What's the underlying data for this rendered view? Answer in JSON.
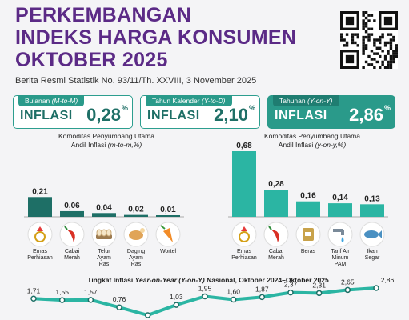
{
  "header": {
    "title_line1": "PERKEMBANGAN",
    "title_line2": "INDEKS HARGA KONSUMEN",
    "title_line3": "OKTOBER 2025",
    "subtitle": "Berita Resmi Statistik No. 93/11/Th. XXVIII, 3 November 2025"
  },
  "cards": [
    {
      "head": "Bulanan",
      "head_em": "(M-to-M)",
      "label": "INFLASI",
      "value": "0,28",
      "unit": "%"
    },
    {
      "head": "Tahun Kalender",
      "head_em": "(Y-to-D)",
      "label": "INFLASI",
      "value": "2,10",
      "unit": "%"
    },
    {
      "head": "Tahunan",
      "head_em": "(Y-on-Y)",
      "label": "INFLASI",
      "value": "2,86",
      "unit": "%"
    }
  ],
  "chart_data": [
    {
      "type": "bar",
      "title": "Komoditas Penyumbang Utama",
      "subtitle": "Andil Inflasi",
      "subtitle_em": "(m-to-m,%)",
      "categories": [
        "Emas Perhiasan",
        "Cabai Merah",
        "Telur Ayam Ras",
        "Daging Ayam Ras",
        "Wortel"
      ],
      "category_lines": [
        [
          "Emas",
          "Perhiasan"
        ],
        [
          "Cabai",
          "Merah"
        ],
        [
          "Telur",
          "Ayam",
          "Ras"
        ],
        [
          "Daging",
          "Ayam",
          "Ras"
        ],
        [
          "Wortel"
        ]
      ],
      "values": [
        0.21,
        0.06,
        0.04,
        0.02,
        0.01
      ],
      "labels": [
        "0,21",
        "0,06",
        "0,04",
        "0,02",
        "0,01"
      ],
      "icons": [
        "gold-jewelry-icon",
        "chili-icon",
        "egg-icon",
        "chicken-icon",
        "carrot-icon"
      ],
      "color": "#1e6f66"
    },
    {
      "type": "bar",
      "title": "Komoditas Penyumbang Utama",
      "subtitle": "Andil Inflasi",
      "subtitle_em": "(y-on-y,%)",
      "categories": [
        "Emas Perhiasan",
        "Cabai Merah",
        "Beras",
        "Tarif Air Minum PAM",
        "Ikan Segar"
      ],
      "category_lines": [
        [
          "Emas",
          "Perhiasan"
        ],
        [
          "Cabai",
          "Merah"
        ],
        [
          "Beras"
        ],
        [
          "Tarif Air",
          "Minum",
          "PAM"
        ],
        [
          "Ikan",
          "Segar"
        ]
      ],
      "values": [
        0.68,
        0.28,
        0.16,
        0.14,
        0.13
      ],
      "labels": [
        "0,68",
        "0,28",
        "0,16",
        "0,14",
        "0,13"
      ],
      "icons": [
        "gold-jewelry-icon",
        "chili-icon",
        "rice-icon",
        "water-tap-icon",
        "fish-icon"
      ],
      "color": "#2bb5a3"
    },
    {
      "type": "line",
      "title": "Tingkat Inflasi",
      "title_em": "Year-on-Year (Y-on-Y)",
      "title_rest": "Nasional, Oktober 2024–Oktober 2025",
      "values": [
        1.71,
        1.55,
        1.57,
        0.76,
        -0.09,
        1.03,
        1.95,
        1.6,
        1.87,
        2.37,
        2.31,
        2.65,
        2.86
      ],
      "labels": [
        "1,71",
        "1,55",
        "1,57",
        "0,76",
        "",
        "1,03",
        "1,95",
        "1,60",
        "1,87",
        "2,37",
        "2,31",
        "2,65",
        "2,86"
      ],
      "color": "#2bb5a3"
    }
  ],
  "colors": {
    "purple": "#5b2a86",
    "teal": "#2a9a8a",
    "dark_teal": "#1e6f66"
  }
}
